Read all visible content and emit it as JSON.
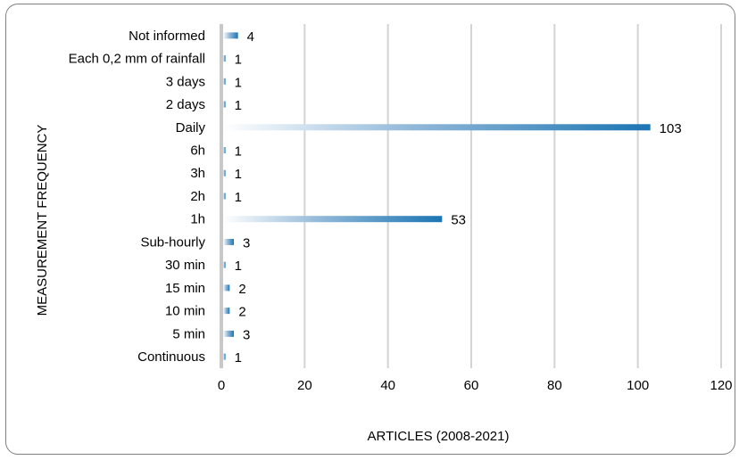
{
  "chart_data": {
    "type": "bar",
    "orientation": "horizontal",
    "categories": [
      "Not informed",
      "Each 0,2 mm of rainfall",
      "3 days",
      "2 days",
      "Daily",
      "6h",
      "3h",
      "2h",
      "1h",
      "Sub-hourly",
      "30 min",
      "15 min",
      "10 min",
      "5 min",
      "Continuous"
    ],
    "values": [
      4,
      1,
      1,
      1,
      103,
      1,
      1,
      1,
      53,
      3,
      1,
      2,
      2,
      3,
      1
    ],
    "data_labels": [
      "4",
      "1",
      "1",
      "1",
      "103",
      "1",
      "1",
      "1",
      "53",
      "3",
      "1",
      "2",
      "2",
      "3",
      "1"
    ],
    "xlabel": "ARTICLES (2008-2021)",
    "ylabel": "MEASUREMENT FREQUENCY",
    "xlim": [
      0,
      120
    ],
    "xticks": [
      0,
      20,
      40,
      60,
      80,
      100,
      120
    ],
    "xtick_labels": [
      "0",
      "20",
      "40",
      "60",
      "80",
      "100",
      "120"
    ],
    "grid": "vertical",
    "bar_color": "#1f77b4"
  }
}
